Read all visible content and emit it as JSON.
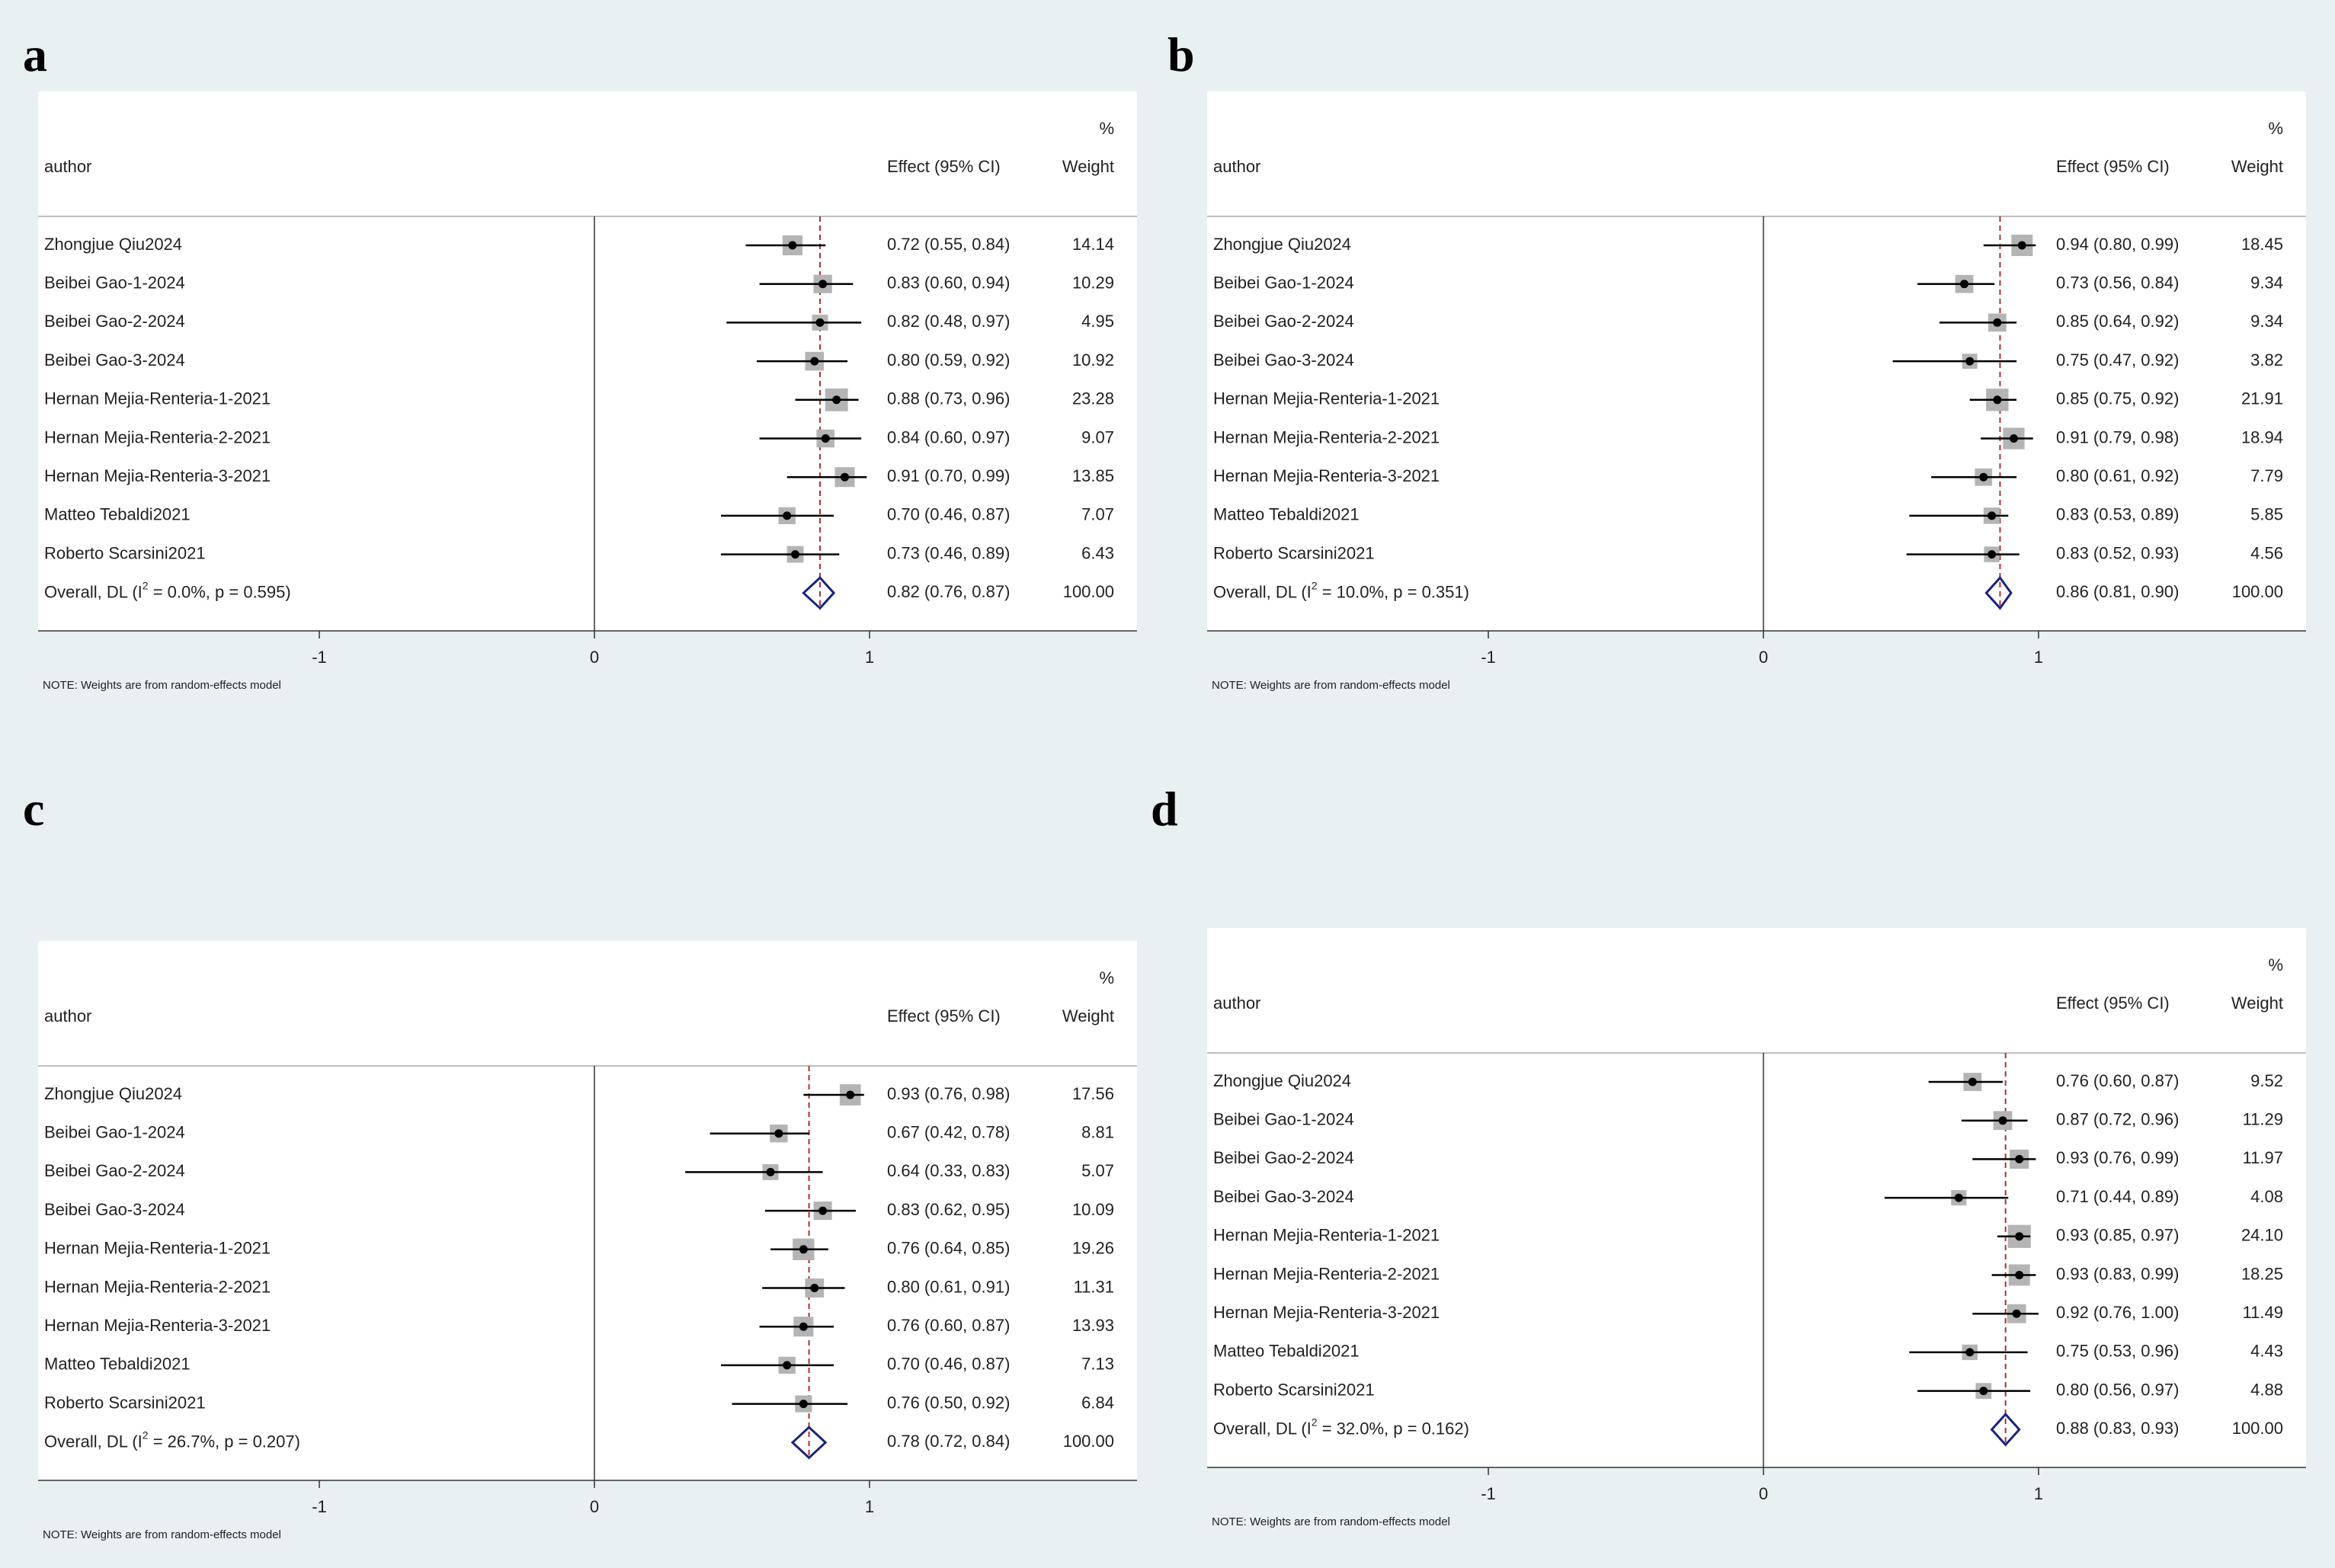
{
  "chart_data": [
    {
      "panel": "a",
      "type": "forest",
      "header": {
        "col_author": "author",
        "col_effect": "Effect (95% CI)",
        "col_pct": "%",
        "col_weight": "Weight"
      },
      "xticks": [
        "-1",
        "0",
        "1"
      ],
      "xlim": [
        -2,
        2
      ],
      "note": "NOTE: Weights are from random-effects model",
      "studies": [
        {
          "author": "Zhongjue Qiu2024",
          "effect": 0.72,
          "lo": 0.55,
          "hi": 0.84,
          "label": "0.72 (0.55, 0.84)",
          "weight": "14.14"
        },
        {
          "author": "Beibei Gao-1-2024",
          "effect": 0.83,
          "lo": 0.6,
          "hi": 0.94,
          "label": "0.83 (0.60, 0.94)",
          "weight": "10.29"
        },
        {
          "author": "Beibei Gao-2-2024",
          "effect": 0.82,
          "lo": 0.48,
          "hi": 0.97,
          "label": "0.82 (0.48, 0.97)",
          "weight": "4.95"
        },
        {
          "author": "Beibei Gao-3-2024",
          "effect": 0.8,
          "lo": 0.59,
          "hi": 0.92,
          "label": "0.80 (0.59, 0.92)",
          "weight": "10.92"
        },
        {
          "author": "Hernan Mejia-Renteria-1-2021",
          "effect": 0.88,
          "lo": 0.73,
          "hi": 0.96,
          "label": "0.88 (0.73, 0.96)",
          "weight": "23.28"
        },
        {
          "author": "Hernan Mejia-Renteria-2-2021",
          "effect": 0.84,
          "lo": 0.6,
          "hi": 0.97,
          "label": "0.84 (0.60, 0.97)",
          "weight": "9.07"
        },
        {
          "author": "Hernan Mejia-Renteria-3-2021",
          "effect": 0.91,
          "lo": 0.7,
          "hi": 0.99,
          "label": "0.91 (0.70, 0.99)",
          "weight": "13.85"
        },
        {
          "author": "Matteo Tebaldi2021",
          "effect": 0.7,
          "lo": 0.46,
          "hi": 0.87,
          "label": "0.70 (0.46, 0.87)",
          "weight": "7.07"
        },
        {
          "author": "Roberto Scarsini2021",
          "effect": 0.73,
          "lo": 0.46,
          "hi": 0.89,
          "label": "0.73 (0.46, 0.89)",
          "weight": "6.43"
        }
      ],
      "overall": {
        "prefix": "Overall, DL (I",
        "sup": "2",
        "suffix": " = 0.0%, p = 0.595)",
        "effect": 0.82,
        "lo": 0.76,
        "hi": 0.87,
        "label": "0.82 (0.76, 0.87)",
        "weight": "100.00"
      }
    },
    {
      "panel": "b",
      "type": "forest",
      "header": {
        "col_author": "author",
        "col_effect": "Effect (95% CI)",
        "col_pct": "%",
        "col_weight": "Weight"
      },
      "xticks": [
        "-1",
        "0",
        "1"
      ],
      "xlim": [
        -2,
        2
      ],
      "note": "NOTE: Weights are from random-effects model",
      "studies": [
        {
          "author": "Zhongjue Qiu2024",
          "effect": 0.94,
          "lo": 0.8,
          "hi": 0.99,
          "label": "0.94 (0.80, 0.99)",
          "weight": "18.45"
        },
        {
          "author": "Beibei Gao-1-2024",
          "effect": 0.73,
          "lo": 0.56,
          "hi": 0.84,
          "label": "0.73 (0.56, 0.84)",
          "weight": "9.34"
        },
        {
          "author": "Beibei Gao-2-2024",
          "effect": 0.85,
          "lo": 0.64,
          "hi": 0.92,
          "label": "0.85 (0.64, 0.92)",
          "weight": "9.34"
        },
        {
          "author": "Beibei Gao-3-2024",
          "effect": 0.75,
          "lo": 0.47,
          "hi": 0.92,
          "label": "0.75 (0.47, 0.92)",
          "weight": "3.82"
        },
        {
          "author": "Hernan Mejia-Renteria-1-2021",
          "effect": 0.85,
          "lo": 0.75,
          "hi": 0.92,
          "label": "0.85 (0.75, 0.92)",
          "weight": "21.91"
        },
        {
          "author": "Hernan Mejia-Renteria-2-2021",
          "effect": 0.91,
          "lo": 0.79,
          "hi": 0.98,
          "label": "0.91 (0.79, 0.98)",
          "weight": "18.94"
        },
        {
          "author": "Hernan Mejia-Renteria-3-2021",
          "effect": 0.8,
          "lo": 0.61,
          "hi": 0.92,
          "label": "0.80 (0.61, 0.92)",
          "weight": "7.79"
        },
        {
          "author": "Matteo Tebaldi2021",
          "effect": 0.83,
          "lo": 0.53,
          "hi": 0.89,
          "label": "0.83 (0.53, 0.89)",
          "weight": "5.85"
        },
        {
          "author": "Roberto Scarsini2021",
          "effect": 0.83,
          "lo": 0.52,
          "hi": 0.93,
          "label": "0.83 (0.52, 0.93)",
          "weight": "4.56"
        }
      ],
      "overall": {
        "prefix": "Overall, DL (I",
        "sup": "2",
        "suffix": " = 10.0%, p = 0.351)",
        "effect": 0.86,
        "lo": 0.81,
        "hi": 0.9,
        "label": "0.86 (0.81, 0.90)",
        "weight": "100.00"
      }
    },
    {
      "panel": "c",
      "type": "forest",
      "header": {
        "col_author": "author",
        "col_effect": "Effect (95% CI)",
        "col_pct": "%",
        "col_weight": "Weight"
      },
      "xticks": [
        "-1",
        "0",
        "1"
      ],
      "xlim": [
        -2,
        2
      ],
      "note": "NOTE: Weights are from random-effects model",
      "studies": [
        {
          "author": "Zhongjue Qiu2024",
          "effect": 0.93,
          "lo": 0.76,
          "hi": 0.98,
          "label": "0.93 (0.76, 0.98)",
          "weight": "17.56"
        },
        {
          "author": "Beibei Gao-1-2024",
          "effect": 0.67,
          "lo": 0.42,
          "hi": 0.78,
          "label": "0.67 (0.42, 0.78)",
          "weight": "8.81"
        },
        {
          "author": "Beibei Gao-2-2024",
          "effect": 0.64,
          "lo": 0.33,
          "hi": 0.83,
          "label": "0.64 (0.33, 0.83)",
          "weight": "5.07"
        },
        {
          "author": "Beibei Gao-3-2024",
          "effect": 0.83,
          "lo": 0.62,
          "hi": 0.95,
          "label": "0.83 (0.62, 0.95)",
          "weight": "10.09"
        },
        {
          "author": "Hernan Mejia-Renteria-1-2021",
          "effect": 0.76,
          "lo": 0.64,
          "hi": 0.85,
          "label": "0.76 (0.64, 0.85)",
          "weight": "19.26"
        },
        {
          "author": "Hernan Mejia-Renteria-2-2021",
          "effect": 0.8,
          "lo": 0.61,
          "hi": 0.91,
          "label": "0.80 (0.61, 0.91)",
          "weight": "11.31"
        },
        {
          "author": "Hernan Mejia-Renteria-3-2021",
          "effect": 0.76,
          "lo": 0.6,
          "hi": 0.87,
          "label": "0.76 (0.60, 0.87)",
          "weight": "13.93"
        },
        {
          "author": "Matteo Tebaldi2021",
          "effect": 0.7,
          "lo": 0.46,
          "hi": 0.87,
          "label": "0.70 (0.46, 0.87)",
          "weight": "7.13"
        },
        {
          "author": "Roberto Scarsini2021",
          "effect": 0.76,
          "lo": 0.5,
          "hi": 0.92,
          "label": "0.76 (0.50, 0.92)",
          "weight": "6.84"
        }
      ],
      "overall": {
        "prefix": "Overall, DL (I",
        "sup": "2",
        "suffix": " = 26.7%, p = 0.207)",
        "effect": 0.78,
        "lo": 0.72,
        "hi": 0.84,
        "label": "0.78 (0.72, 0.84)",
        "weight": "100.00"
      }
    },
    {
      "panel": "d",
      "type": "forest",
      "header": {
        "col_author": "author",
        "col_effect": "Effect (95% CI)",
        "col_pct": "%",
        "col_weight": "Weight"
      },
      "xticks": [
        "-1",
        "0",
        "1"
      ],
      "xlim": [
        -2,
        2
      ],
      "note": "NOTE: Weights are from random-effects model",
      "studies": [
        {
          "author": "Zhongjue Qiu2024",
          "effect": 0.76,
          "lo": 0.6,
          "hi": 0.87,
          "label": "0.76 (0.60, 0.87)",
          "weight": "9.52"
        },
        {
          "author": "Beibei Gao-1-2024",
          "effect": 0.87,
          "lo": 0.72,
          "hi": 0.96,
          "label": "0.87 (0.72, 0.96)",
          "weight": "11.29"
        },
        {
          "author": "Beibei Gao-2-2024",
          "effect": 0.93,
          "lo": 0.76,
          "hi": 0.99,
          "label": "0.93 (0.76, 0.99)",
          "weight": "11.97"
        },
        {
          "author": "Beibei Gao-3-2024",
          "effect": 0.71,
          "lo": 0.44,
          "hi": 0.89,
          "label": "0.71 (0.44, 0.89)",
          "weight": "4.08"
        },
        {
          "author": "Hernan Mejia-Renteria-1-2021",
          "effect": 0.93,
          "lo": 0.85,
          "hi": 0.97,
          "label": "0.93 (0.85, 0.97)",
          "weight": "24.10"
        },
        {
          "author": "Hernan Mejia-Renteria-2-2021",
          "effect": 0.93,
          "lo": 0.83,
          "hi": 0.99,
          "label": "0.93 (0.83, 0.99)",
          "weight": "18.25"
        },
        {
          "author": "Hernan Mejia-Renteria-3-2021",
          "effect": 0.92,
          "lo": 0.76,
          "hi": 1.0,
          "label": "0.92 (0.76, 1.00)",
          "weight": "11.49"
        },
        {
          "author": "Matteo Tebaldi2021",
          "effect": 0.75,
          "lo": 0.53,
          "hi": 0.96,
          "label": "0.75 (0.53, 0.96)",
          "weight": "4.43"
        },
        {
          "author": "Roberto Scarsini2021",
          "effect": 0.8,
          "lo": 0.56,
          "hi": 0.97,
          "label": "0.80 (0.56, 0.97)",
          "weight": "4.88"
        }
      ],
      "overall": {
        "prefix": "Overall, DL (I",
        "sup": "2",
        "suffix": " = 32.0%, p = 0.162)",
        "effect": 0.88,
        "lo": 0.83,
        "hi": 0.93,
        "label": "0.88 (0.83, 0.93)",
        "weight": "100.00"
      }
    }
  ],
  "colors": {
    "page_background": "#e8f0f2",
    "plot_background": "#ffffff",
    "weight_box": "#b4b4b4",
    "ci_line": "#000000",
    "overall_line": "#b03030",
    "diamond": "#1a237e"
  }
}
